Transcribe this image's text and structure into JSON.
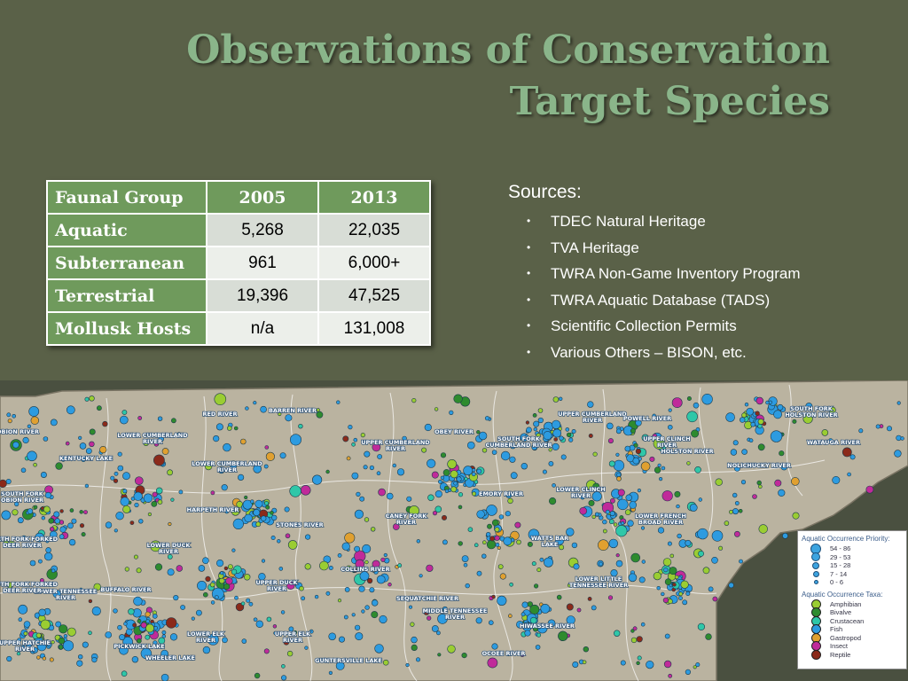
{
  "title": {
    "line1": "Observations of Conservation",
    "line2": "Target Species"
  },
  "table": {
    "headers": [
      "Faunal Group",
      "2005",
      "2013"
    ],
    "rows": [
      {
        "group": "Aquatic",
        "v2005": "5,268",
        "v2013": "22,035"
      },
      {
        "group": "Subterranean",
        "v2005": "961",
        "v2013": "6,000+"
      },
      {
        "group": "Terrestrial",
        "v2005": "19,396",
        "v2013": "47,525"
      },
      {
        "group": "Mollusk Hosts",
        "v2005": "n/a",
        "v2013": "131,008"
      }
    ]
  },
  "sources": {
    "heading": "Sources:",
    "bullet": "•",
    "items": [
      "TDEC Natural Heritage",
      "TVA Heritage",
      "TWRA Non-Game Inventory Program",
      "TWRA Aquatic Database (TADS)",
      "Scientific Collection Permits",
      "Various Others – BISON, etc."
    ]
  },
  "map": {
    "watershed_labels": [
      "RED RIVER",
      "BARREN RIVER",
      "LOWER CUMBERLAND RIVER",
      "UPPER CUMBERLAND RIVER",
      "OBEY RIVER",
      "SOUTH FORK CUMBERLAND RIVER",
      "UPPER CUMBERLAND RIVER",
      "POWELL RIVER",
      "UPPER CLINCH RIVER",
      "HOLSTON RIVER",
      "SOUTH FORK HOLSTON RIVER",
      "WATAUGA RIVER",
      "NOLICHUCKY RIVER",
      "LOWER FRENCH BROAD RIVER",
      "LOWER CLINCH RIVER",
      "EMORY RIVER",
      "CANEY FORK RIVER",
      "HARPETH RIVER",
      "STONES RIVER",
      "COLLINS RIVER",
      "LOWER DUCK RIVER",
      "UPPER DUCK RIVER",
      "BUFFALO RIVER",
      "LOWER TENNESSEE RIVER",
      "KENTUCKY LAKE",
      "SOUTH FORK OBION RIVER",
      "NORTH FORK FORKED DEER RIVER",
      "SOUTH FORK FORKED DEER RIVER",
      "UPPER HATCHIE RIVER",
      "PICKWICK LAKE",
      "LOWER ELK RIVER",
      "UPPER ELK RIVER",
      "WHEELER LAKE",
      "GUNTERSVILLE LAKE",
      "SEQUATCHIE RIVER",
      "MIDDLE TENNESSEE RIVER",
      "HIWASSEE RIVER",
      "OCOEE RIVER",
      "LOWER LITTLE TENNESSEE RIVER",
      "WATTS BAR LAKE",
      "OBION RIVER",
      "LOWER CUMBERLAND RIVER"
    ],
    "legend": {
      "priority_title": "Aquatic Occurrence Priority:",
      "priority_classes": [
        "54 - 86",
        "29 - 53",
        "15 - 28",
        "7 - 14",
        "0 - 6"
      ],
      "taxa_title": "Aquatic Occurrence Taxa:",
      "taxa": [
        {
          "name": "Amphibian",
          "color": "#9acd32"
        },
        {
          "name": "Bivalve",
          "color": "#2e8b2e"
        },
        {
          "name": "Crustacean",
          "color": "#2fc7a8"
        },
        {
          "name": "Fish",
          "color": "#2d9be0"
        },
        {
          "name": "Gastropod",
          "color": "#e0a030"
        },
        {
          "name": "Insect",
          "color": "#c02a9a"
        },
        {
          "name": "Reptile",
          "color": "#8b2a1a"
        }
      ]
    },
    "colors": {
      "land": "#bab3a0",
      "boundary": "#ffffff",
      "outside": "#4a5040"
    }
  }
}
